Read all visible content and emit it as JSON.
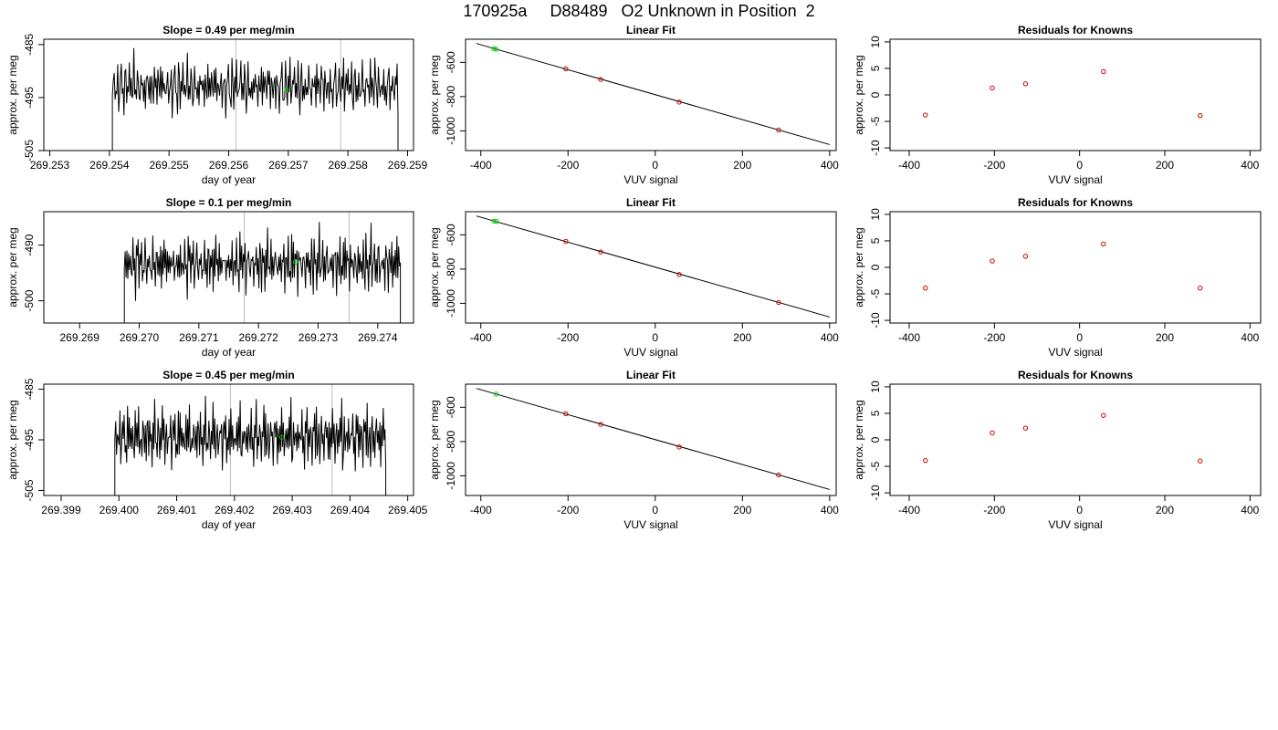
{
  "page": {
    "title": "170925a     D88489   O2 Unknown in Position  2"
  },
  "chart_data": [
    {
      "type": "line",
      "title": "Slope =  0.49  per meg/min",
      "xlabel": "day of year",
      "ylabel": "approx. per meg",
      "xlim": [
        269.2529,
        269.2591
      ],
      "ylim": [
        -505,
        -484
      ],
      "xticks": [
        "269.253",
        "269.254",
        "269.255",
        "269.256",
        "269.257",
        "269.258",
        "269.259"
      ],
      "yticks": [
        "-485",
        "-495",
        "-505"
      ],
      "series": [
        {
          "values": {
            "start": 269.25405,
            "end": 269.25884,
            "base": -493.5,
            "amp": [
              [
                -4.0,
                1.2,
                5.5,
                -3.0,
                2.5,
                -2.0,
                4.0,
                -6.0,
                1.0,
                3.0,
                7.5,
                -2.5,
                0.5,
                -5.0,
                6.0,
                2.0,
                -3.5,
                4.5,
                -1.5,
                8.5,
                -4.0,
                3.5,
                1.5,
                -2.0,
                9.5,
                -1.0,
                2.8,
                -3.2,
                6.5,
                0.2
              ]
            ]
          }
        }
      ],
      "vlines": [
        269.25612,
        269.25788
      ],
      "highlight_point": {
        "x": 269.25697,
        "y": -493.5
      },
      "grid": false
    },
    {
      "type": "scatter",
      "title": "Linear Fit",
      "xlabel": "VUV signal",
      "ylabel": "approx. per meg",
      "xlim": [
        -435,
        415
      ],
      "ylim": [
        -1115,
        -465
      ],
      "xticks": [
        "-400",
        "-200",
        "0",
        "200",
        "400"
      ],
      "yticks": [
        "-600",
        "-800",
        "-1000"
      ],
      "fit_line": {
        "x": [
          -410,
          400
        ],
        "y": [
          -490,
          -1080
        ]
      },
      "points": [
        {
          "x": -370,
          "y": -520,
          "color": "#00cc00"
        },
        {
          "x": -365,
          "y": -523,
          "color": "#00cc00"
        },
        {
          "x": -205,
          "y": -638,
          "color": "#cc0000"
        },
        {
          "x": -125,
          "y": -700,
          "color": "#cc0000"
        },
        {
          "x": 55,
          "y": -832,
          "color": "#cc0000"
        },
        {
          "x": 283,
          "y": -995,
          "color": "#cc0000"
        }
      ],
      "grid": false
    },
    {
      "type": "scatter",
      "title": "Residuals for Knowns",
      "xlabel": "VUV signal",
      "ylabel": "approx. per meg",
      "xlim": [
        -445,
        425
      ],
      "ylim": [
        -10.5,
        10.5
      ],
      "xticks": [
        "-400",
        "-200",
        "0",
        "200",
        "400"
      ],
      "yticks": [
        "10",
        "5",
        "0",
        "-5",
        "-10"
      ],
      "points": [
        {
          "x": -362,
          "y": -3.8,
          "color": "#cc0000"
        },
        {
          "x": -205,
          "y": 1.3,
          "color": "#cc0000"
        },
        {
          "x": -127,
          "y": 2.1,
          "color": "#cc0000"
        },
        {
          "x": 56,
          "y": 4.4,
          "color": "#cc0000"
        },
        {
          "x": 283,
          "y": -3.9,
          "color": "#cc0000"
        }
      ],
      "grid": false
    },
    {
      "type": "line",
      "title": "Slope =  0.1  per meg/min",
      "xlabel": "day of year",
      "ylabel": "approx. per meg",
      "xlim": [
        269.2684,
        269.2746
      ],
      "ylim": [
        -504,
        -484
      ],
      "xticks": [
        "269.269",
        "269.270",
        "269.271",
        "269.272",
        "269.273",
        "269.274"
      ],
      "yticks": [
        "-490",
        "-500"
      ],
      "series": [
        {
          "values": {
            "start": 269.26975,
            "end": 269.27438,
            "base": -493.5,
            "amp": [
              [
                -3.0,
                2.5,
                -4.5,
                5.0,
                -1.5,
                3.0,
                -6.5,
                4.5,
                1.0,
                -5.0,
                7.5,
                -3.0,
                2.0,
                -8.0,
                6.0,
                -2.0,
                9.5,
                -4.5,
                3.0,
                -1.0,
                5.5,
                -6.0,
                2.5,
                -2.5,
                4.0,
                1.5,
                -3.5,
                2.0,
                -1.0,
                0.5
              ]
            ]
          }
        }
      ],
      "vlines": [
        269.27176,
        269.27352
      ],
      "highlight_point": {
        "x": 269.27262,
        "y": -493.0
      },
      "grid": false
    },
    {
      "type": "scatter",
      "title": "Linear Fit",
      "xlabel": "VUV signal",
      "ylabel": "approx. per meg",
      "xlim": [
        -435,
        415
      ],
      "ylim": [
        -1115,
        -465
      ],
      "xticks": [
        "-400",
        "-200",
        "0",
        "200",
        "400"
      ],
      "yticks": [
        "-600",
        "-800",
        "-1000"
      ],
      "fit_line": {
        "x": [
          -410,
          400
        ],
        "y": [
          -490,
          -1080
        ]
      },
      "points": [
        {
          "x": -370,
          "y": -520,
          "color": "#00cc00"
        },
        {
          "x": -364,
          "y": -522,
          "color": "#00cc00"
        },
        {
          "x": -205,
          "y": -638,
          "color": "#cc0000"
        },
        {
          "x": -125,
          "y": -700,
          "color": "#cc0000"
        },
        {
          "x": 55,
          "y": -832,
          "color": "#cc0000"
        },
        {
          "x": 283,
          "y": -995,
          "color": "#cc0000"
        }
      ],
      "grid": false
    },
    {
      "type": "scatter",
      "title": "Residuals for Knowns",
      "xlabel": "VUV signal",
      "ylabel": "approx. per meg",
      "xlim": [
        -445,
        425
      ],
      "ylim": [
        -10.5,
        10.5
      ],
      "xticks": [
        "-400",
        "-200",
        "0",
        "200",
        "400"
      ],
      "yticks": [
        "10",
        "5",
        "0",
        "-5",
        "-10"
      ],
      "points": [
        {
          "x": -362,
          "y": -3.9,
          "color": "#cc0000"
        },
        {
          "x": -205,
          "y": 1.2,
          "color": "#cc0000"
        },
        {
          "x": -127,
          "y": 2.1,
          "color": "#cc0000"
        },
        {
          "x": 56,
          "y": 4.4,
          "color": "#cc0000"
        },
        {
          "x": 283,
          "y": -3.9,
          "color": "#cc0000"
        }
      ],
      "grid": false
    },
    {
      "type": "line",
      "title": "Slope =  0.45  per meg/min",
      "xlabel": "day of year",
      "ylabel": "approx. per meg",
      "xlim": [
        269.3987,
        269.4051
      ],
      "ylim": [
        -506,
        -484
      ],
      "xticks": [
        "269.399",
        "269.400",
        "269.401",
        "269.402",
        "269.403",
        "269.404",
        "269.405"
      ],
      "yticks": [
        "-485",
        "-495",
        "-505"
      ],
      "series": [
        {
          "values": {
            "start": 269.39993,
            "end": 269.40462,
            "base": -494.5,
            "amp": [
              [
                -2.5,
                4.0,
                -6.5,
                1.5,
                3.0,
                -3.5,
                5.0,
                -8.0,
                2.0,
                4.5,
                -2.0,
                7.0,
                -5.5,
                1.0,
                -9.5,
                6.5,
                -3.0,
                10.5,
                -4.0,
                2.5,
                -6.0,
                3.5,
                1.0,
                -7.5,
                5.0,
                -2.5,
                8.0,
                -3.5,
                11.0,
                -8.5
              ]
            ]
          }
        }
      ],
      "vlines": [
        269.40193,
        269.40369
      ],
      "highlight_point": {
        "x": 269.40282,
        "y": -494.5
      },
      "grid": false
    },
    {
      "type": "scatter",
      "title": "Linear Fit",
      "xlabel": "VUV signal",
      "ylabel": "approx. per meg",
      "xlim": [
        -435,
        415
      ],
      "ylim": [
        -1115,
        -465
      ],
      "xticks": [
        "-400",
        "-200",
        "0",
        "200",
        "400"
      ],
      "yticks": [
        "-600",
        "-800",
        "-1000"
      ],
      "fit_line": {
        "x": [
          -410,
          400
        ],
        "y": [
          -490,
          -1080
        ]
      },
      "points": [
        {
          "x": -365,
          "y": -523,
          "color": "#00cc00"
        },
        {
          "x": -205,
          "y": -638,
          "color": "#cc0000"
        },
        {
          "x": -125,
          "y": -700,
          "color": "#cc0000"
        },
        {
          "x": 55,
          "y": -832,
          "color": "#cc0000"
        },
        {
          "x": 283,
          "y": -995,
          "color": "#cc0000"
        }
      ],
      "grid": false
    },
    {
      "type": "scatter",
      "title": "Residuals for Knowns",
      "xlabel": "VUV signal",
      "ylabel": "approx. per meg",
      "xlim": [
        -445,
        425
      ],
      "ylim": [
        -10.5,
        10.5
      ],
      "xticks": [
        "-400",
        "-200",
        "0",
        "200",
        "400"
      ],
      "yticks": [
        "10",
        "5",
        "0",
        "-5",
        "-10"
      ],
      "points": [
        {
          "x": -362,
          "y": -3.9,
          "color": "#cc0000"
        },
        {
          "x": -205,
          "y": 1.3,
          "color": "#cc0000"
        },
        {
          "x": -127,
          "y": 2.2,
          "color": "#cc0000"
        },
        {
          "x": 56,
          "y": 4.6,
          "color": "#cc0000"
        },
        {
          "x": 283,
          "y": -4.0,
          "color": "#cc0000"
        }
      ],
      "grid": false
    }
  ]
}
